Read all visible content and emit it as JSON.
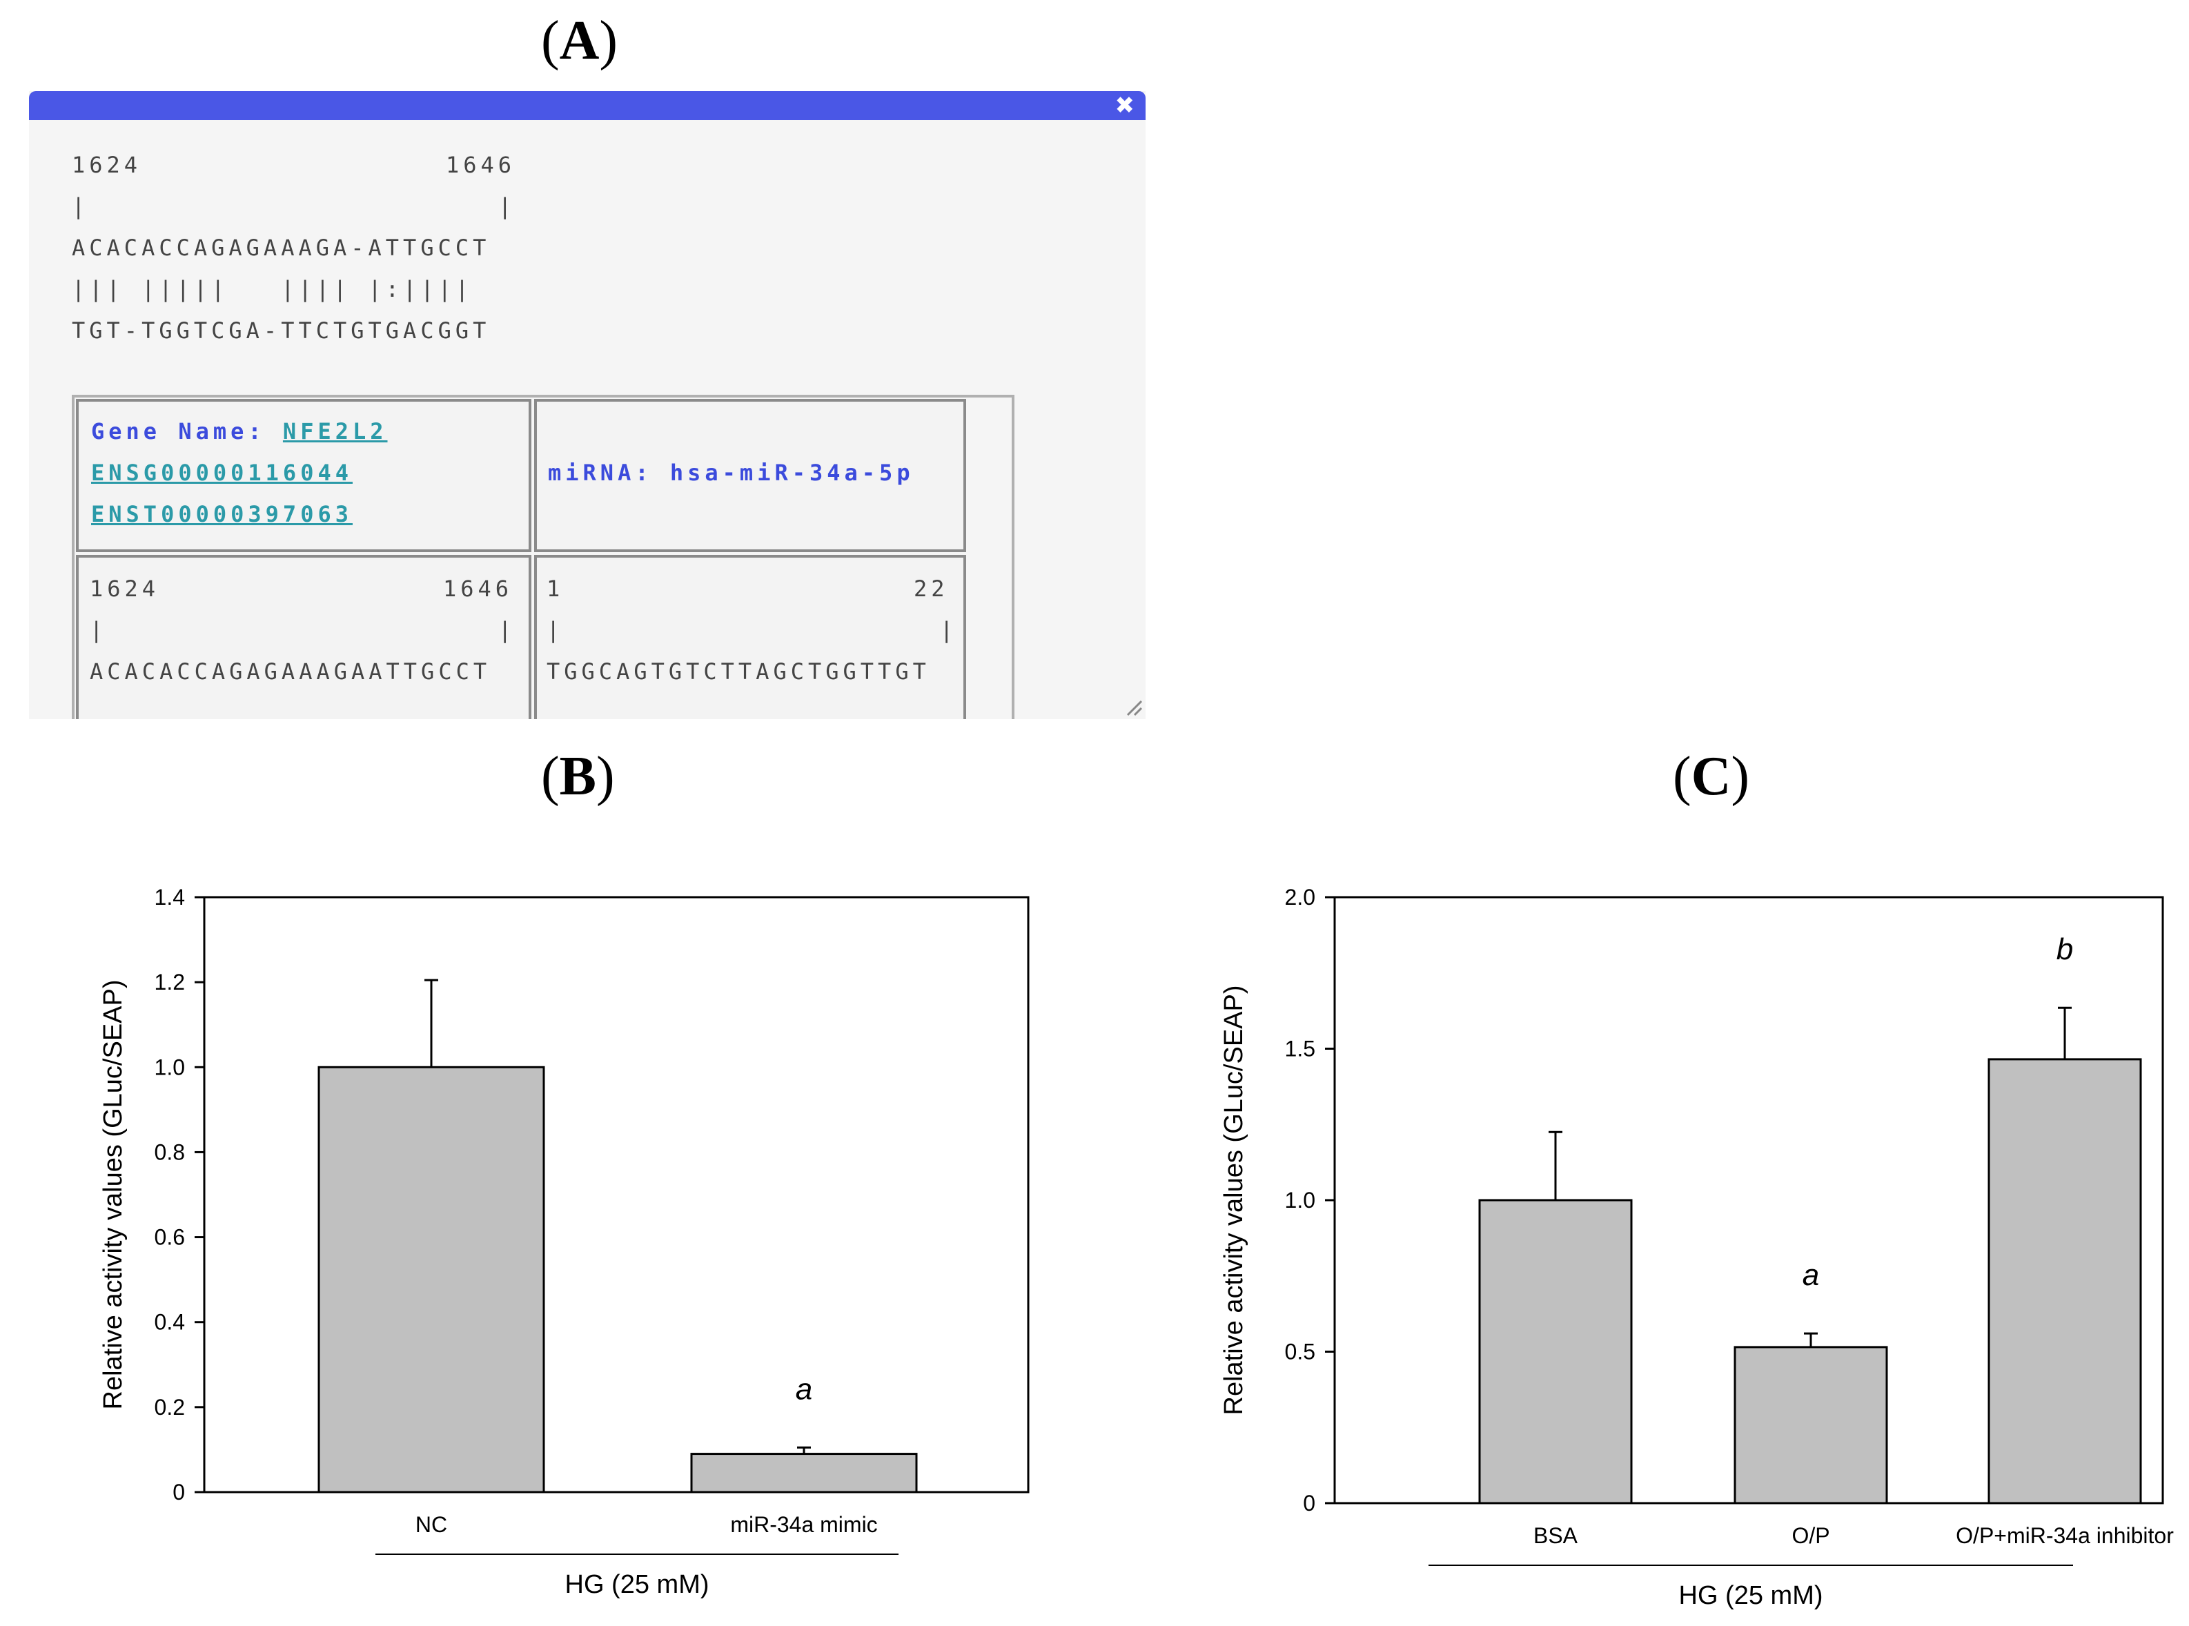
{
  "panels": {
    "a_label": "A",
    "b_label": "B",
    "c_label": "C"
  },
  "window": {
    "close_glyph": "✖",
    "alignment": {
      "start": "1624",
      "end": "1646",
      "bar_left": "|",
      "bar_right": "|",
      "target_seq": "ACACACCAGAGAAAGA-ATTGCCT",
      "match_line": "||| |||||   |||| |:||||",
      "mirna_seq": "TGT-TGGTCGA-TTCTGTGACGGT"
    },
    "table": {
      "gene_label": "Gene Name:",
      "gene_name": "NFE2L2",
      "ensg": "ENSG00000116044",
      "enst": "ENST00000397063",
      "mirna_label": "miRNA:",
      "mirna_name": "hsa-miR-34a-5p",
      "left_start": "1624",
      "left_end": "1646",
      "left_seq": "ACACACCAGAGAAAGAATTGCCT",
      "right_start": "1",
      "right_end": "22",
      "right_seq": "TGGCAGTGTCTTAGCTGGTTGT",
      "bar": "|"
    }
  },
  "chart_data": [
    {
      "panel": "B",
      "type": "bar",
      "categories": [
        "NC",
        "miR-34a mimic"
      ],
      "values": [
        1.0,
        0.09
      ],
      "error_upper": [
        1.205,
        0.105
      ],
      "annotations": [
        "",
        "a"
      ],
      "ylabel": "Relative activity values (GLuc/SEAP)",
      "group_label": "HG (25 mM)",
      "ylim": [
        0,
        1.4
      ],
      "yticks": [
        0,
        0.2,
        0.4,
        0.6,
        0.8,
        1.0,
        1.2,
        1.4
      ],
      "ytick_labels": [
        "0",
        "0.2",
        "0.4",
        "0.6",
        "0.8",
        "1.0",
        "1.2",
        "1.4"
      ],
      "bar_color": "#c0c0c0"
    },
    {
      "panel": "C",
      "type": "bar",
      "categories": [
        "BSA",
        "O/P",
        "O/P+miR-34a inhibitor"
      ],
      "values": [
        1.0,
        0.515,
        1.465
      ],
      "error_upper": [
        1.225,
        0.56,
        1.635
      ],
      "annotations": [
        "",
        "a",
        "b"
      ],
      "ylabel": "Relative activity values (GLuc/SEAP)",
      "group_label": "HG (25 mM)",
      "ylim": [
        0,
        2.0
      ],
      "yticks": [
        0,
        0.5,
        1.0,
        1.5,
        2.0
      ],
      "ytick_labels": [
        "0",
        "0.5",
        "1.0",
        "1.5",
        "2.0"
      ],
      "bar_color": "#c0c0c0"
    }
  ]
}
